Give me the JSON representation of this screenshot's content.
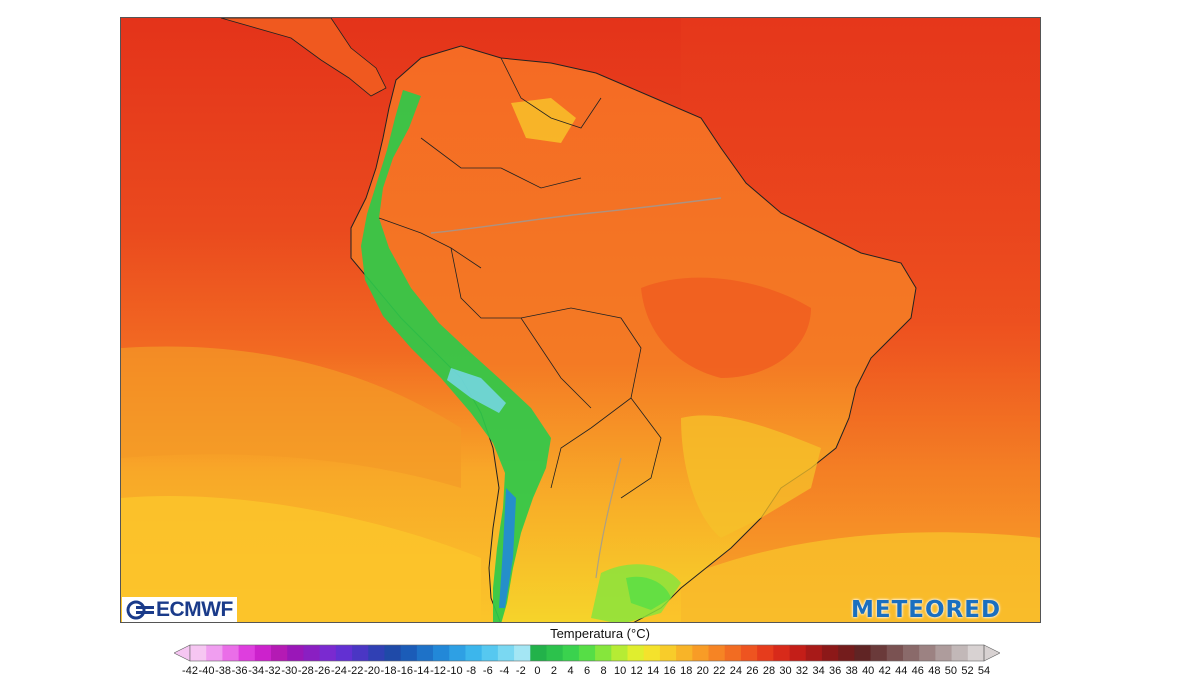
{
  "map": {
    "title": "Temperatura (°C)",
    "region": "South America",
    "ocean_color": "#e8391c",
    "warm_land_color": "#f56a24",
    "cool_south_color": "#fbbf22",
    "andes_color": "#2fd04a"
  },
  "logos": {
    "left": "ECMWF",
    "right": "METEORED"
  },
  "legend": {
    "unit_label": "Temperatura (°C)",
    "ticks": [
      "-42",
      "-40",
      "-38",
      "-36",
      "-34",
      "-32",
      "-30",
      "-28",
      "-26",
      "-24",
      "-22",
      "-20",
      "-18",
      "-16",
      "-14",
      "-12",
      "-10",
      "-8",
      "-6",
      "-4",
      "-2",
      "0",
      "2",
      "4",
      "6",
      "8",
      "10",
      "12",
      "14",
      "16",
      "18",
      "20",
      "22",
      "24",
      "26",
      "28",
      "30",
      "32",
      "34",
      "36",
      "38",
      "40",
      "42",
      "44",
      "46",
      "48",
      "50",
      "52",
      "54"
    ],
    "colors": [
      "#f6c6f2",
      "#f09ef0",
      "#ea6ee8",
      "#de3ede",
      "#cc22cc",
      "#b41ab4",
      "#9a17b8",
      "#8a1fc2",
      "#7a2ad0",
      "#6230d2",
      "#4a36c4",
      "#3040b4",
      "#1f4aa8",
      "#1b5cb8",
      "#1e72c8",
      "#2288d8",
      "#2ea0e4",
      "#3cb6ec",
      "#56c8f0",
      "#7ad8f2",
      "#a4e6f4",
      "#22b24a",
      "#2cc24c",
      "#3ad24e",
      "#56de46",
      "#86e63c",
      "#b6ec34",
      "#e0ee2e",
      "#f4e22c",
      "#f8cc2a",
      "#f8b428",
      "#f89c26",
      "#f68424",
      "#f26c22",
      "#ee5420",
      "#e63c1c",
      "#d82a1a",
      "#c41e18",
      "#a81a18",
      "#8c1818",
      "#741c1c",
      "#602424",
      "#6a3a3a",
      "#7a5252",
      "#8a6a6a",
      "#9c8282",
      "#ae9c9c",
      "#c2b8b8",
      "#d8d2d2"
    ]
  }
}
